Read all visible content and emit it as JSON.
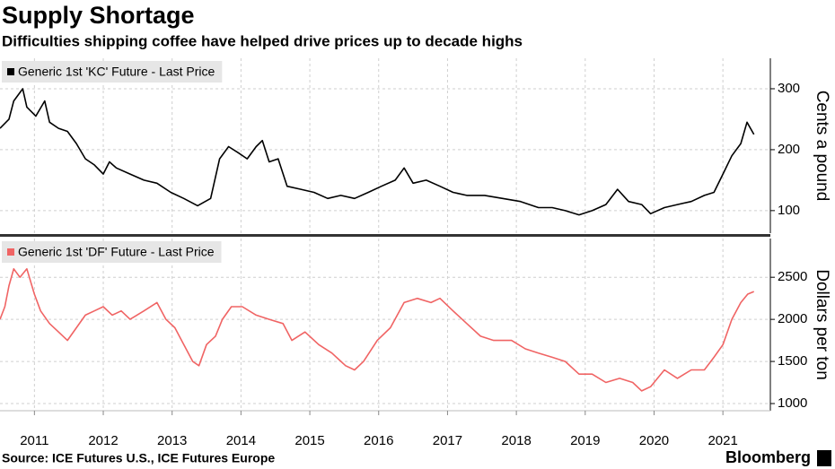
{
  "title": "Supply Shortage",
  "subtitle": "Difficulties shipping coffee have helped drive prices up to decade highs",
  "source": "Source: ICE Futures U.S., ICE Futures Europe",
  "brand": "Bloomberg",
  "chart_data": [
    {
      "type": "line",
      "ylabel": "Cents a pound",
      "xlim": [
        2010.5,
        2021.65
      ],
      "ylim": [
        63,
        350
      ],
      "yticks": [
        100,
        200,
        300
      ],
      "grid": true,
      "series": [
        {
          "name": "Generic 1st 'KC' Future - Last Price",
          "color": "#000000",
          "x": [
            2010.5,
            2010.63,
            2010.7,
            2010.83,
            2010.89,
            2011.02,
            2011.15,
            2011.22,
            2011.35,
            2011.48,
            2011.61,
            2011.74,
            2011.87,
            2012.0,
            2012.09,
            2012.19,
            2012.39,
            2012.59,
            2012.78,
            2012.98,
            2013.17,
            2013.37,
            2013.56,
            2013.69,
            2013.82,
            2013.96,
            2014.09,
            2014.22,
            2014.31,
            2014.41,
            2014.54,
            2014.67,
            2014.87,
            2015.06,
            2015.26,
            2015.45,
            2015.65,
            2015.85,
            2016.04,
            2016.24,
            2016.37,
            2016.5,
            2016.69,
            2016.89,
            2017.08,
            2017.28,
            2017.54,
            2017.8,
            2018.06,
            2018.32,
            2018.52,
            2018.71,
            2018.91,
            2019.1,
            2019.3,
            2019.47,
            2019.63,
            2019.82,
            2019.95,
            2020.15,
            2020.34,
            2020.54,
            2020.73,
            2020.87,
            2021.0,
            2021.13,
            2021.26,
            2021.35,
            2021.45
          ],
          "values": [
            235,
            250,
            280,
            300,
            270,
            255,
            280,
            245,
            235,
            230,
            210,
            185,
            175,
            160,
            180,
            170,
            160,
            150,
            145,
            130,
            120,
            108,
            120,
            185,
            205,
            195,
            185,
            205,
            215,
            180,
            185,
            140,
            135,
            130,
            120,
            125,
            120,
            130,
            140,
            150,
            170,
            145,
            150,
            140,
            130,
            125,
            125,
            120,
            115,
            105,
            105,
            100,
            93,
            100,
            110,
            135,
            115,
            110,
            95,
            105,
            110,
            115,
            125,
            130,
            160,
            190,
            210,
            245,
            225
          ]
        }
      ]
    },
    {
      "type": "line",
      "ylabel": "Dollars per ton",
      "xlim": [
        2010.5,
        2021.65
      ],
      "xticks": [
        2011,
        2012,
        2013,
        2014,
        2015,
        2016,
        2017,
        2018,
        2019,
        2020,
        2021
      ],
      "ylim": [
        915,
        2960
      ],
      "yticks": [
        1000,
        1500,
        2000,
        2500
      ],
      "grid": true,
      "series": [
        {
          "name": "Generic 1st 'DF' Future - Last Price",
          "color": "#f06464",
          "x": [
            2010.5,
            2010.57,
            2010.63,
            2010.7,
            2010.79,
            2010.89,
            2011.0,
            2011.09,
            2011.22,
            2011.35,
            2011.48,
            2011.61,
            2011.74,
            2011.87,
            2012.0,
            2012.13,
            2012.26,
            2012.39,
            2012.59,
            2012.78,
            2012.91,
            2013.04,
            2013.17,
            2013.3,
            2013.39,
            2013.5,
            2013.63,
            2013.73,
            2013.86,
            2014.02,
            2014.22,
            2014.41,
            2014.61,
            2014.74,
            2014.93,
            2015.13,
            2015.32,
            2015.52,
            2015.65,
            2015.78,
            2015.98,
            2016.17,
            2016.37,
            2016.56,
            2016.76,
            2016.89,
            2017.08,
            2017.28,
            2017.48,
            2017.67,
            2017.93,
            2018.13,
            2018.32,
            2018.52,
            2018.71,
            2018.91,
            2019.1,
            2019.3,
            2019.5,
            2019.69,
            2019.82,
            2019.95,
            2020.15,
            2020.34,
            2020.54,
            2020.73,
            2020.87,
            2021.0,
            2021.13,
            2021.26,
            2021.36,
            2021.45
          ],
          "values": [
            2000,
            2150,
            2400,
            2600,
            2500,
            2600,
            2300,
            2100,
            1950,
            1850,
            1750,
            1900,
            2050,
            2100,
            2150,
            2050,
            2100,
            2000,
            2100,
            2200,
            2000,
            1900,
            1700,
            1500,
            1450,
            1700,
            1800,
            2000,
            2150,
            2150,
            2050,
            2000,
            1950,
            1750,
            1850,
            1700,
            1600,
            1450,
            1400,
            1500,
            1750,
            1900,
            2200,
            2250,
            2200,
            2250,
            2100,
            1950,
            1800,
            1750,
            1750,
            1650,
            1600,
            1550,
            1500,
            1350,
            1350,
            1250,
            1300,
            1250,
            1150,
            1200,
            1400,
            1300,
            1400,
            1400,
            1550,
            1700,
            2000,
            2200,
            2300,
            2330
          ]
        }
      ]
    }
  ]
}
